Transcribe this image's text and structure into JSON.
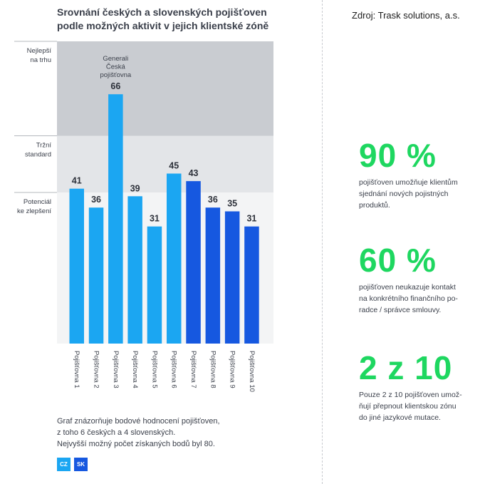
{
  "header": {
    "title_line1": "Srovnání českých a slovenských pojišťoven",
    "title_line2": "podle možných aktivit v jejich klientské zóně",
    "source": "Zdroj: Trask solutions, a.s."
  },
  "chart_data": {
    "type": "bar",
    "title": "Srovnání českých a slovenských pojišťoven podle možných aktivit v jejich klientské zóně",
    "categories": [
      "Pojišťovna 1",
      "Pojišťovna 2",
      "Pojišťovna 3",
      "Pojišťovna 4",
      "Pojišťovna 5",
      "Pojišťovna 6",
      "Pojišťovna 7",
      "Pojišťovna 8",
      "Pojišťovna 9",
      "Pojišťovna 10"
    ],
    "values": [
      41,
      36,
      66,
      39,
      31,
      45,
      43,
      36,
      35,
      31
    ],
    "countries": [
      "CZ",
      "CZ",
      "CZ",
      "CZ",
      "CZ",
      "CZ",
      "SK",
      "SK",
      "SK",
      "SK"
    ],
    "series_colors": {
      "CZ": "#1ba6f2",
      "SK": "#1658e0"
    },
    "ylim": [
      0,
      80
    ],
    "bands": [
      {
        "label_lines": [
          "Nejlepší",
          "na trhu"
        ],
        "from": 55,
        "to": 80,
        "color": "#c9ccd1"
      },
      {
        "label_lines": [
          "Tržní",
          "standard"
        ],
        "from": 40,
        "to": 55,
        "color": "#e3e5e8"
      },
      {
        "label_lines": [
          "Potenciál",
          "ke zlepšení"
        ],
        "from": 0,
        "to": 40,
        "color": "#f3f4f5"
      }
    ],
    "annotation": {
      "category_index": 2,
      "lines": [
        "Generali",
        "Česká",
        "pojišťovna"
      ]
    }
  },
  "note": {
    "line1": "Graf znázorňuje bodové hodnocení pojišťoven,",
    "line2": "z toho 6 českých a 4 slovenských.",
    "line3": "Nejvyšší možný počet získaných bodů byl 80."
  },
  "legend": [
    {
      "label": "CZ",
      "color": "#1ba6f2"
    },
    {
      "label": "SK",
      "color": "#1658e0"
    }
  ],
  "stats": [
    {
      "value": "90 %",
      "lines": [
        "pojišťoven umožňuje klientům",
        "sjednání nových pojistných",
        "produktů."
      ]
    },
    {
      "value": "60 %",
      "lines": [
        "pojišťoven neukazuje kontakt",
        "na konkrétního finančního po-",
        "radce / správce smlouvy."
      ]
    },
    {
      "value": "2 z 10",
      "lines": [
        "Pouze 2 z 10 pojišťoven umož-",
        "ňují přepnout klientskou zónu",
        "do jiné jazykové mutace."
      ]
    }
  ]
}
